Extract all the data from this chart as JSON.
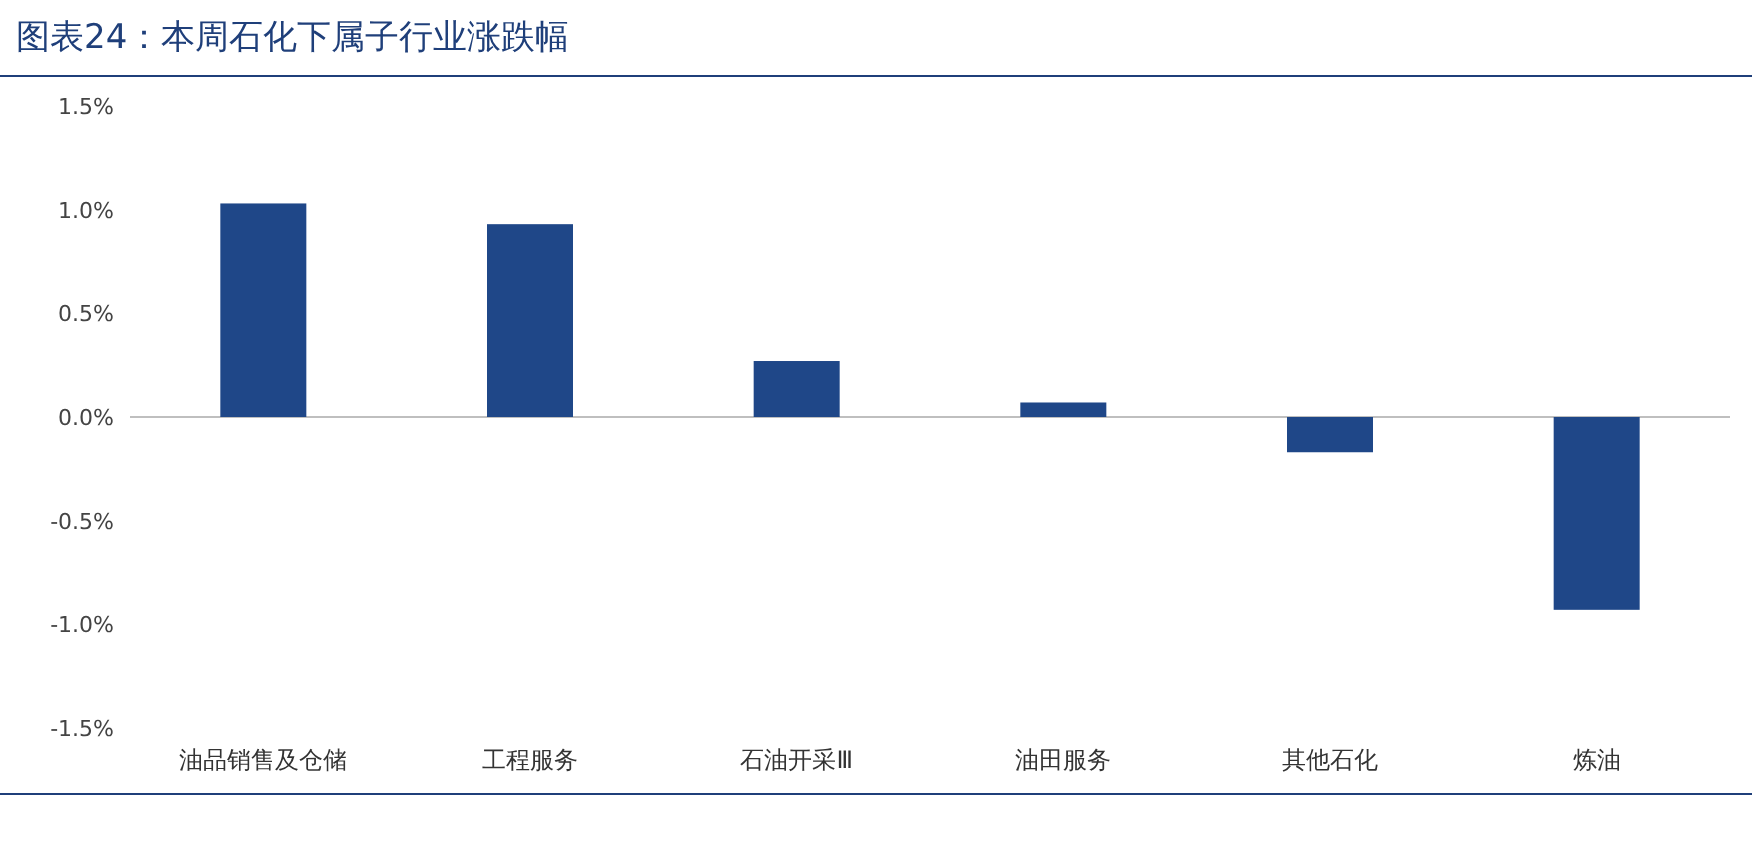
{
  "chart_data": {
    "type": "bar",
    "title": "图表24：本周石化下属子行业涨跌幅",
    "categories": [
      "油品销售及仓储",
      "工程服务",
      "石油开采Ⅲ",
      "油田服务",
      "其他石化",
      "炼油"
    ],
    "values": [
      1.03,
      0.93,
      0.27,
      0.07,
      -0.17,
      -0.93
    ],
    "color": "#1f4788",
    "ylim": [
      -1.5,
      1.5
    ],
    "yticks": [
      {
        "value": -1.5,
        "label": "-1.5%"
      },
      {
        "value": -1.0,
        "label": "-1.0%"
      },
      {
        "value": -0.5,
        "label": "-0.5%"
      },
      {
        "value": 0,
        "label": "0.0%"
      },
      {
        "value": 0.5,
        "label": "0.5%"
      },
      {
        "value": 1.0,
        "label": "1.0%"
      },
      {
        "value": 1.5,
        "label": "1.5%"
      }
    ]
  }
}
